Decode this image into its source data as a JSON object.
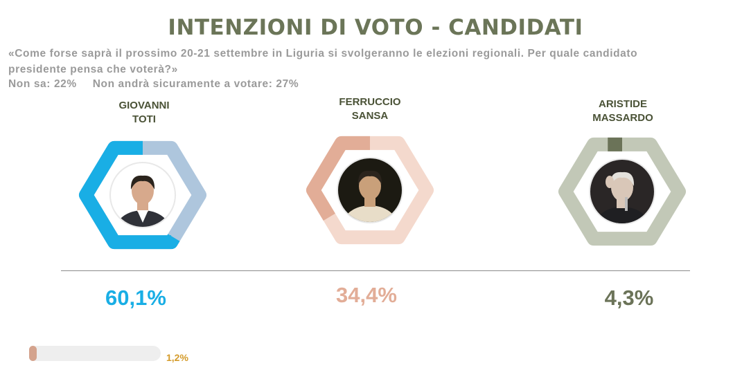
{
  "header": {
    "title": "INTENZIONI DI VOTO - CANDIDATI",
    "question_line1": "«Come forse saprà il prossimo 20-21 settembre in Liguria si svolgeranno le elezioni regionali. Per quale candidato",
    "question_line2": "presidente pensa che voterà?»",
    "non_sa": "Non sa: 22%",
    "non_andra": "Non andrà sicuramente a votare: 27%"
  },
  "candidates": [
    {
      "name_line1": "GIOVANNI",
      "name_line2": "TOTI",
      "value_label": "60,1%",
      "color": "#19aee5",
      "track_color": "#aec6dd",
      "photo": "portrait-photo"
    },
    {
      "name_line1": "FERRUCCIO",
      "name_line2": "SANSA",
      "value_label": "34,4%",
      "color": "#e2ad97",
      "track_color": "#f4d9cd",
      "photo": "portrait-photo"
    },
    {
      "name_line1": "ARISTIDE",
      "name_line2": "MASSARDO",
      "value_label": "4,3%",
      "color": "#6b7358",
      "track_color": "#c2c8b7",
      "photo": "portrait-photo"
    }
  ],
  "other": {
    "value_label": "1,2%",
    "color": "#d4a38d",
    "label_color": "#d49b2a"
  },
  "chart_data": {
    "type": "pie",
    "title": "INTENZIONI DI VOTO - CANDIDATI",
    "categories": [
      "GIOVANNI TOTI",
      "FERRUCCIO SANSA",
      "ARISTIDE MASSARDO"
    ],
    "values": [
      60.1,
      34.4,
      4.3
    ],
    "other_value": 1.2,
    "unit": "%",
    "colors": [
      "#19aee5",
      "#e2ad97",
      "#6b7358"
    ]
  }
}
